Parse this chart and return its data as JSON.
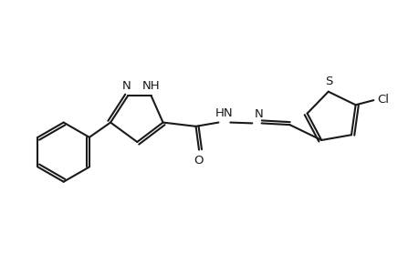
{
  "background_color": "#ffffff",
  "line_color": "#1a1a1a",
  "line_width": 1.5,
  "font_size": 9.5,
  "fig_width": 4.6,
  "fig_height": 3.0,
  "dpi": 100,
  "xlim": [
    -2.5,
    2.8
  ],
  "ylim": [
    -1.2,
    1.2
  ]
}
